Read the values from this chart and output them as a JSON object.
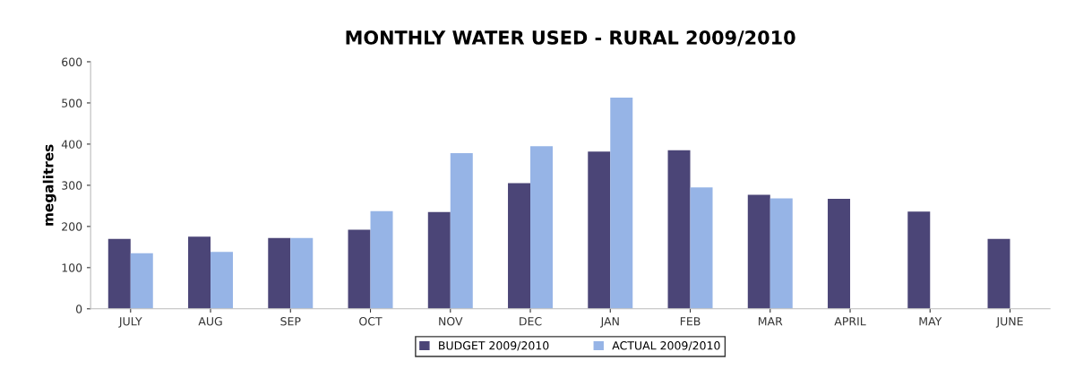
{
  "chart_data": {
    "type": "bar",
    "title": "MONTHLY WATER USED - RURAL 2009/2010",
    "ylabel": "megalitres",
    "categories": [
      "JULY",
      "AUG",
      "SEP",
      "OCT",
      "NOV",
      "DEC",
      "JAN",
      "FEB",
      "MAR",
      "APRIL",
      "MAY",
      "JUNE"
    ],
    "series": [
      {
        "name": "BUDGET 2009/2010",
        "color": "#4b4577",
        "values": [
          170,
          175,
          172,
          192,
          235,
          305,
          382,
          385,
          277,
          267,
          236,
          170
        ]
      },
      {
        "name": "ACTUAL 2009/2010",
        "color": "#96b4e6",
        "values": [
          135,
          138,
          172,
          237,
          378,
          395,
          513,
          295,
          268,
          null,
          null,
          null
        ]
      }
    ],
    "ylim": [
      0,
      600
    ],
    "yticks": [
      0,
      100,
      200,
      300,
      400,
      500,
      600
    ],
    "grid": false,
    "legend": "bottom"
  }
}
